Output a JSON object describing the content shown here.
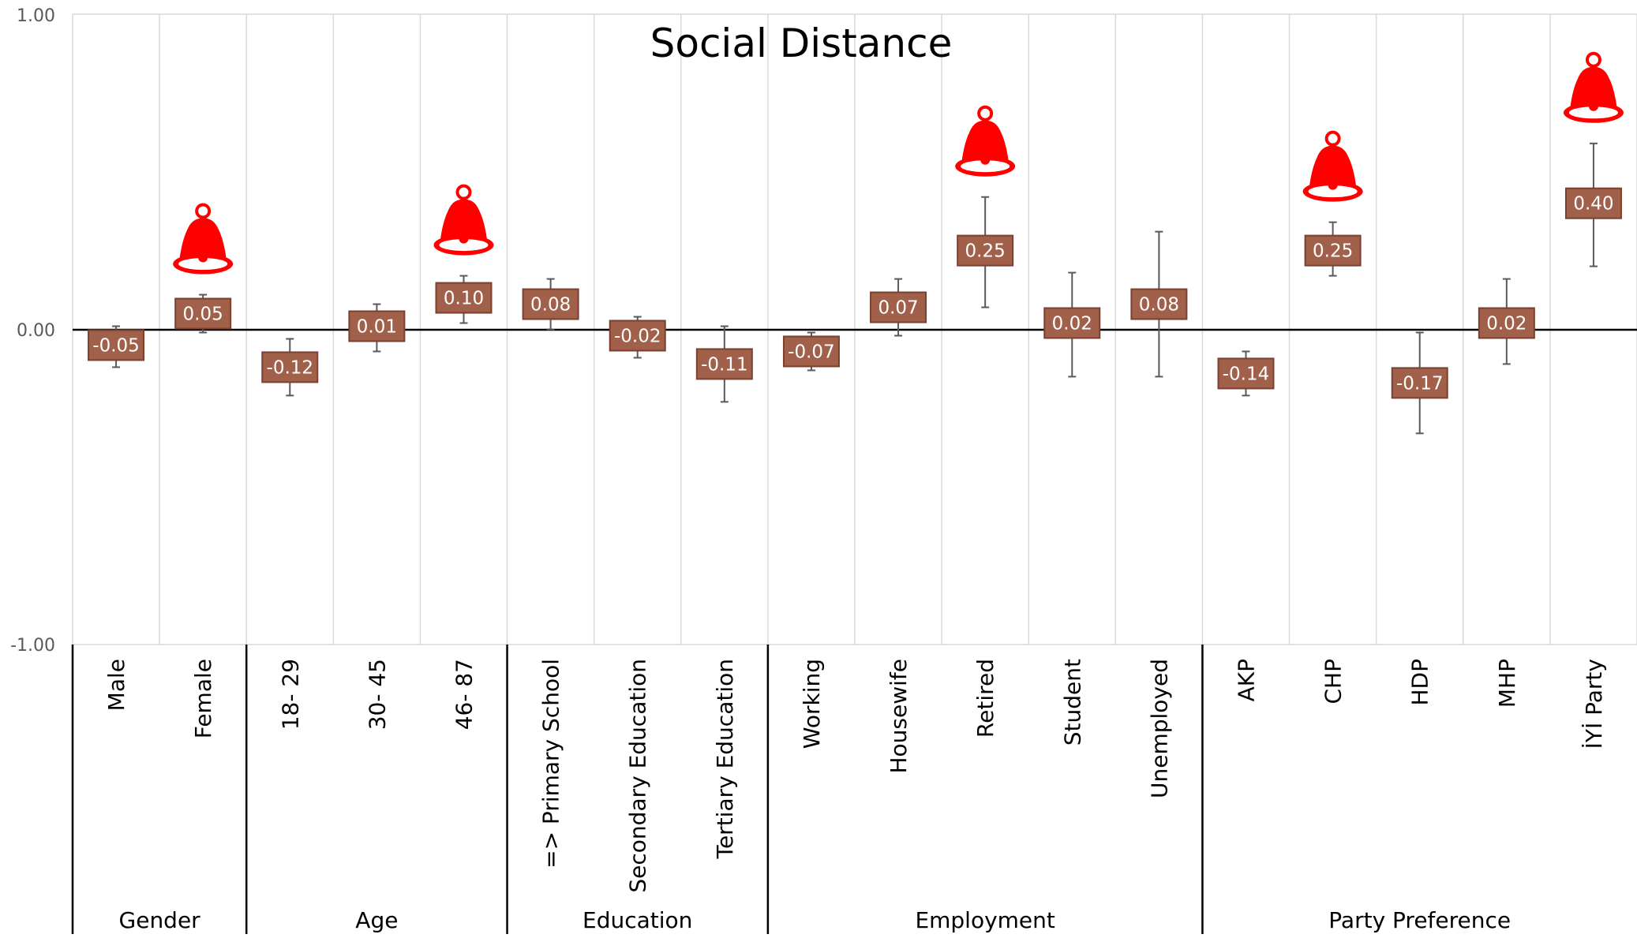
{
  "chart_data": {
    "type": "scatter",
    "title": "Social Distance",
    "xlabel": "",
    "ylabel": "",
    "ylim": [
      -1.0,
      1.0
    ],
    "yticks": [
      "1.00",
      "0.00",
      "-1.00"
    ],
    "grid": "vertical",
    "legend": "none",
    "colors": {
      "marker_fill": "#a0604a",
      "marker_border": "#7a4030",
      "label_text": "#ffffff",
      "error_bar": "#595959",
      "zero_line": "#000000",
      "gridline": "#d9d9d9",
      "bell": "#ff0000"
    },
    "groups": [
      {
        "name": "Gender",
        "categories": [
          "Male",
          "Female"
        ]
      },
      {
        "name": "Age",
        "categories": [
          "18- 29",
          "30- 45",
          "46- 87"
        ]
      },
      {
        "name": "Education",
        "categories": [
          "=> Primary School",
          "Secondary Education",
          "Tertiary Education"
        ]
      },
      {
        "name": "Employment",
        "categories": [
          "Working",
          "Housewife",
          "Retired",
          "Student",
          "Unemployed"
        ]
      },
      {
        "name": "Party Preference",
        "categories": [
          "AKP",
          "CHP",
          "HDP",
          "MHP",
          "İYİ Party"
        ]
      }
    ],
    "categories": [
      "Male",
      "Female",
      "18- 29",
      "30- 45",
      "46- 87",
      "=> Primary School",
      "Secondary Education",
      "Tertiary Education",
      "Working",
      "Housewife",
      "Retired",
      "Student",
      "Unemployed",
      "AKP",
      "CHP",
      "HDP",
      "MHP",
      "İYİ Party"
    ],
    "values": [
      -0.05,
      0.05,
      -0.12,
      0.01,
      0.1,
      0.08,
      -0.02,
      -0.11,
      -0.07,
      0.07,
      0.25,
      0.02,
      0.08,
      -0.14,
      0.25,
      -0.17,
      0.02,
      0.4
    ],
    "labels": [
      "-0.05",
      "0.05",
      "-0.12",
      "0.01",
      "0.10",
      "0.08",
      "-0.02",
      "-0.11",
      "-0.07",
      "0.07",
      "0.25",
      "0.02",
      "0.08",
      "-0.14",
      "0.25",
      "-0.17",
      "0.02",
      "0.40"
    ],
    "ci_low": [
      -0.12,
      -0.01,
      -0.21,
      -0.07,
      0.02,
      0.0,
      -0.09,
      -0.23,
      -0.13,
      -0.02,
      0.07,
      -0.15,
      -0.15,
      -0.21,
      0.17,
      -0.33,
      -0.11,
      0.2
    ],
    "ci_high": [
      0.01,
      0.11,
      -0.03,
      0.08,
      0.17,
      0.16,
      0.04,
      0.01,
      -0.01,
      0.16,
      0.42,
      0.18,
      0.31,
      -0.07,
      0.34,
      -0.01,
      0.16,
      0.59
    ],
    "highlighted": [
      false,
      true,
      false,
      false,
      true,
      false,
      false,
      false,
      false,
      false,
      true,
      false,
      false,
      false,
      true,
      false,
      false,
      true
    ],
    "highlight_icon": "bell-icon"
  }
}
